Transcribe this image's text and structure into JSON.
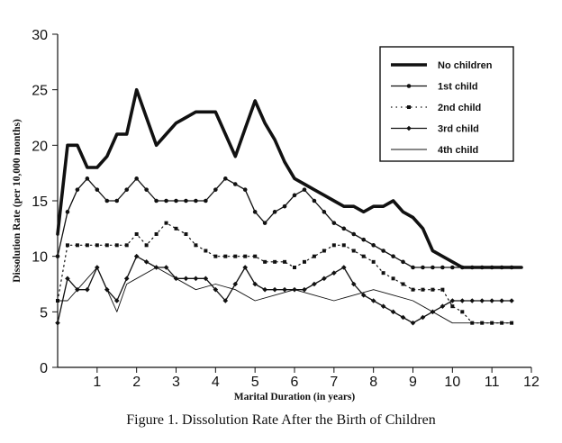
{
  "caption": "Figure 1.   Dissolution Rate After the Birth of Children",
  "chart_data": {
    "type": "line",
    "xlabel": "Marital Duration (in years)",
    "ylabel": "Dissolution Rate (per 10,000 months)",
    "xlim": [
      0,
      12
    ],
    "ylim": [
      0,
      30
    ],
    "xticks": [
      "1",
      "2",
      "3",
      "4",
      "5",
      "6",
      "7",
      "8",
      "9",
      "10",
      "11",
      "12"
    ],
    "yticks": [
      "0",
      "5",
      "10",
      "15",
      "20",
      "25",
      "30"
    ],
    "grid": false,
    "legend_position": "top-right",
    "series": [
      {
        "name": "No children",
        "style": "thick",
        "x": [
          0,
          0.25,
          0.5,
          0.75,
          1.0,
          1.25,
          1.5,
          1.75,
          2.0,
          2.25,
          2.5,
          2.75,
          3.0,
          3.25,
          3.5,
          3.75,
          4.0,
          4.25,
          4.5,
          4.75,
          5.0,
          5.25,
          5.5,
          5.75,
          6.0,
          6.25,
          6.5,
          6.75,
          7.0,
          7.25,
          7.5,
          7.75,
          8.0,
          8.25,
          8.5,
          8.75,
          9.0,
          9.25,
          9.5,
          9.75,
          10.0,
          10.25,
          10.5,
          10.75,
          11.0,
          11.25,
          11.5,
          11.75
        ],
        "y": [
          12,
          20,
          20,
          18,
          18,
          19,
          21,
          21,
          25,
          22.5,
          20,
          21,
          22,
          22.5,
          23,
          23,
          23,
          21,
          19,
          21.5,
          24,
          22,
          20.5,
          18.5,
          17,
          16.5,
          16,
          15.5,
          15,
          14.5,
          14.5,
          14,
          14.5,
          14.5,
          15,
          14,
          13.5,
          12.5,
          10.5,
          10,
          9.5,
          9,
          9,
          9,
          9,
          9,
          9,
          9
        ]
      },
      {
        "name": "1st child",
        "style": "solid-dot",
        "x": [
          0,
          0.25,
          0.5,
          0.75,
          1.0,
          1.25,
          1.5,
          1.75,
          2.0,
          2.25,
          2.5,
          2.75,
          3.0,
          3.25,
          3.5,
          3.75,
          4.0,
          4.25,
          4.5,
          4.75,
          5.0,
          5.25,
          5.5,
          5.75,
          6.0,
          6.25,
          6.5,
          6.75,
          7.0,
          7.25,
          7.5,
          7.75,
          8.0,
          8.25,
          8.5,
          8.75,
          9.0,
          9.25,
          9.5,
          9.75,
          10.0,
          10.25,
          10.5,
          10.75,
          11.0,
          11.25,
          11.5
        ],
        "y": [
          10,
          14,
          16,
          17,
          16,
          15,
          15,
          16,
          17,
          16,
          15,
          15,
          15,
          15,
          15,
          15,
          16,
          17,
          16.5,
          16,
          14,
          13,
          14,
          14.5,
          15.5,
          16,
          15,
          14,
          13,
          12.5,
          12,
          11.5,
          11,
          10.5,
          10,
          9.5,
          9,
          9,
          9,
          9,
          9,
          9,
          9,
          9,
          9,
          9,
          9
        ]
      },
      {
        "name": "2nd child",
        "style": "dotted",
        "x": [
          0,
          0.25,
          0.5,
          0.75,
          1.0,
          1.25,
          1.5,
          1.75,
          2.0,
          2.25,
          2.5,
          2.75,
          3.0,
          3.25,
          3.5,
          3.75,
          4.0,
          4.25,
          4.5,
          4.75,
          5.0,
          5.25,
          5.5,
          5.75,
          6.0,
          6.25,
          6.5,
          6.75,
          7.0,
          7.25,
          7.5,
          7.75,
          8.0,
          8.25,
          8.5,
          8.75,
          9.0,
          9.25,
          9.5,
          9.75,
          10.0,
          10.25,
          10.5,
          10.75,
          11.0,
          11.25,
          11.5
        ],
        "y": [
          6,
          11,
          11,
          11,
          11,
          11,
          11,
          11,
          12,
          11,
          12,
          13,
          12.5,
          12,
          11,
          10.5,
          10,
          10,
          10,
          10,
          10,
          9.5,
          9.5,
          9.5,
          9,
          9.5,
          10,
          10.5,
          11,
          11,
          10.5,
          10,
          9.5,
          8.5,
          8,
          7.5,
          7,
          7,
          7,
          7,
          5.5,
          5,
          4,
          4,
          4,
          4,
          4
        ]
      },
      {
        "name": "3rd child",
        "style": "dashed",
        "x": [
          0,
          0.25,
          0.5,
          0.75,
          1.0,
          1.25,
          1.5,
          1.75,
          2.0,
          2.25,
          2.5,
          2.75,
          3.0,
          3.25,
          3.5,
          3.75,
          4.0,
          4.25,
          4.5,
          4.75,
          5.0,
          5.25,
          5.5,
          5.75,
          6.0,
          6.25,
          6.5,
          6.75,
          7.0,
          7.25,
          7.5,
          7.75,
          8.0,
          8.25,
          8.5,
          8.75,
          9.0,
          9.25,
          9.5,
          9.75,
          10.0,
          10.25,
          10.5,
          10.75,
          11.0,
          11.25,
          11.5
        ],
        "y": [
          4,
          8,
          7,
          7,
          9,
          7,
          6,
          8,
          10,
          9.5,
          9,
          9,
          8,
          8,
          8,
          8,
          7,
          6,
          7.5,
          9,
          7.5,
          7,
          7,
          7,
          7,
          7,
          7.5,
          8,
          8.5,
          9,
          7.5,
          6.5,
          6,
          5.5,
          5,
          4.5,
          4,
          4.5,
          5,
          5.5,
          6,
          6,
          6,
          6,
          6,
          6,
          6
        ]
      },
      {
        "name": "4th child",
        "style": "thin",
        "x": [
          0,
          0.25,
          0.5,
          0.75,
          1.0,
          1.25,
          1.5,
          1.75,
          2.0,
          2.5,
          3.0,
          3.5,
          4.0,
          4.5,
          5.0,
          5.5,
          6.0,
          6.5,
          7.0,
          7.5,
          8.0,
          8.5,
          9.0,
          9.5,
          10.0,
          10.5,
          11.0,
          11.5
        ],
        "y": [
          6,
          6,
          7,
          8,
          9,
          7,
          5,
          7.5,
          8,
          9,
          8,
          7,
          7.5,
          7,
          6,
          6.5,
          7,
          6.5,
          6,
          6.5,
          7,
          6.5,
          6,
          5,
          4,
          4,
          4,
          4
        ]
      }
    ]
  }
}
